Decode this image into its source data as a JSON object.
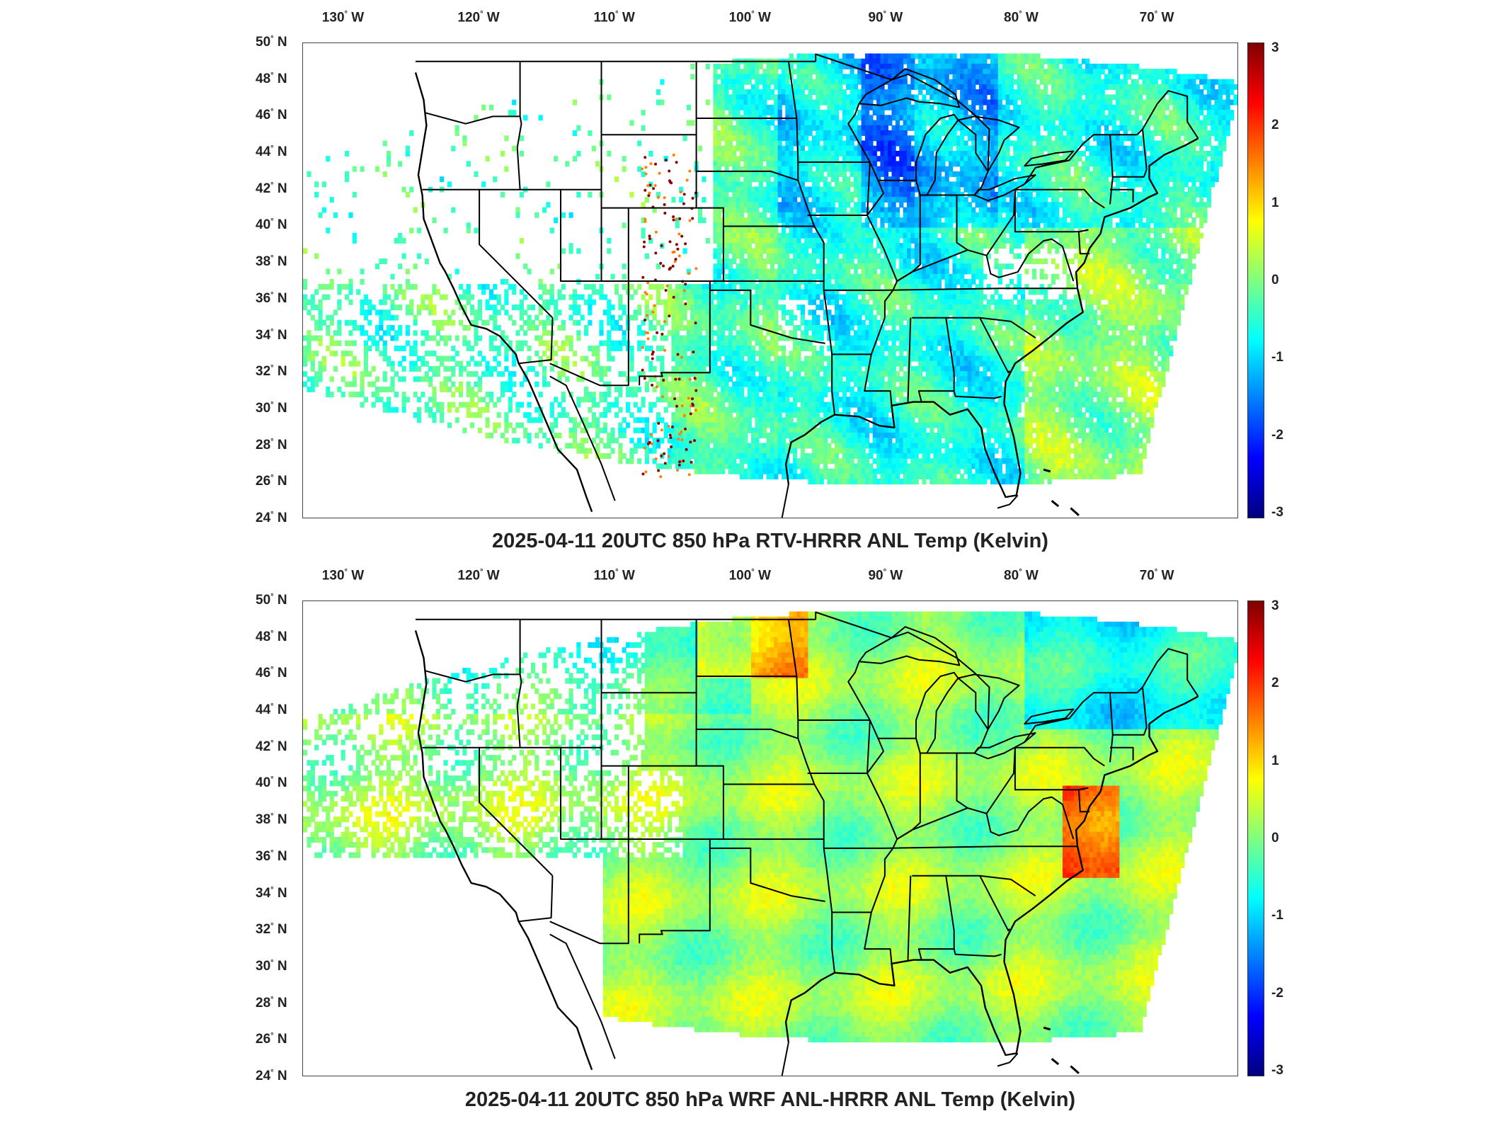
{
  "panels": [
    {
      "title": "2025-04-11 20UTC 850 hPa RTV-HRRR ANL Temp (Kelvin)",
      "field": "rtv"
    },
    {
      "title": "2025-04-11 20UTC 850 hPa WRF ANL-HRRR ANL Temp (Kelvin)",
      "field": "wrf"
    }
  ],
  "map_extent": {
    "lon_min": -133,
    "lon_max": -64,
    "lat_min": 24,
    "lat_max": 50
  },
  "lon_ticks": [
    {
      "value": -130,
      "label": "130",
      "hemi": "W"
    },
    {
      "value": -120,
      "label": "120",
      "hemi": "W"
    },
    {
      "value": -110,
      "label": "110",
      "hemi": "W"
    },
    {
      "value": -100,
      "label": "100",
      "hemi": "W"
    },
    {
      "value": -90,
      "label": "90",
      "hemi": "W"
    },
    {
      "value": -80,
      "label": "80",
      "hemi": "W"
    },
    {
      "value": -70,
      "label": "70",
      "hemi": "W"
    }
  ],
  "lat_ticks": [
    {
      "value": 50,
      "label": "50",
      "hemi": "N"
    },
    {
      "value": 48,
      "label": "48",
      "hemi": "N"
    },
    {
      "value": 46,
      "label": "46",
      "hemi": "N"
    },
    {
      "value": 44,
      "label": "44",
      "hemi": "N"
    },
    {
      "value": 42,
      "label": "42",
      "hemi": "N"
    },
    {
      "value": 40,
      "label": "40",
      "hemi": "N"
    },
    {
      "value": 38,
      "label": "38",
      "hemi": "N"
    },
    {
      "value": 36,
      "label": "36",
      "hemi": "N"
    },
    {
      "value": 34,
      "label": "34",
      "hemi": "N"
    },
    {
      "value": 32,
      "label": "32",
      "hemi": "N"
    },
    {
      "value": 30,
      "label": "30",
      "hemi": "N"
    },
    {
      "value": 28,
      "label": "28",
      "hemi": "N"
    },
    {
      "value": 26,
      "label": "26",
      "hemi": "N"
    },
    {
      "value": 24,
      "label": "24",
      "hemi": "N"
    }
  ],
  "colorbar": {
    "min": -3,
    "max": 3,
    "ticks": [
      "3",
      "2",
      "1",
      "0",
      "-1",
      "-2",
      "-3"
    ],
    "colormap": "jet"
  }
}
